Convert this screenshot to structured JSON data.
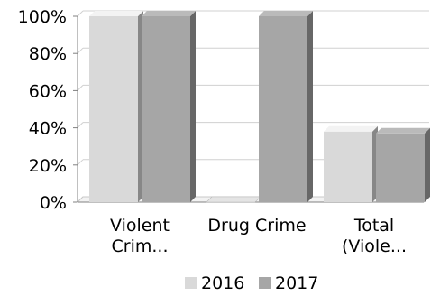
{
  "chart_data": {
    "type": "bar",
    "style": "3d-clustered",
    "title": "",
    "xlabel": "",
    "ylabel": "",
    "ylim": [
      0,
      100
    ],
    "y_ticks": [
      "0%",
      "20%",
      "40%",
      "60%",
      "80%",
      "100%"
    ],
    "grid": true,
    "legend_position": "bottom",
    "categories": [
      [
        "Violent",
        "Crim..."
      ],
      [
        "Drug Crime"
      ],
      [
        "Total",
        "(Viole..."
      ]
    ],
    "series": [
      {
        "name": "2016",
        "color": "#d9d9d9",
        "values": [
          100,
          0,
          38
        ]
      },
      {
        "name": "2017",
        "color": "#a6a6a6",
        "values": [
          100,
          100,
          37
        ]
      }
    ]
  }
}
